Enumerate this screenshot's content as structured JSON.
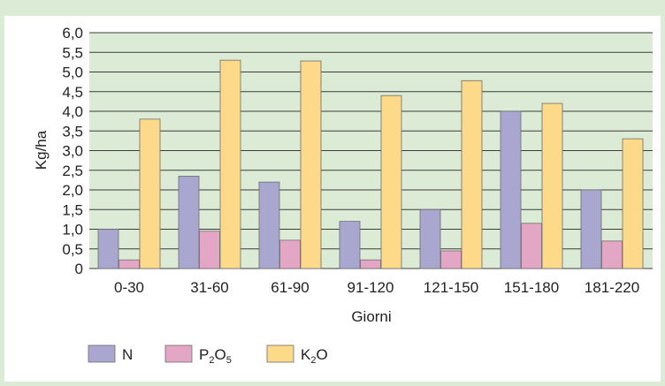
{
  "chart_data": {
    "type": "bar",
    "categories": [
      "0-30",
      "31-60",
      "61-90",
      "91-120",
      "121-150",
      "151-180",
      "181-220"
    ],
    "series": [
      {
        "name": "N",
        "color": "#a9a7cf",
        "values": [
          1.0,
          2.35,
          2.2,
          1.2,
          1.5,
          4.0,
          2.0
        ]
      },
      {
        "name": "P2O5",
        "color": "#e3a6c4",
        "values": [
          0.22,
          0.95,
          0.72,
          0.22,
          0.45,
          1.15,
          0.7
        ]
      },
      {
        "name": "K2O",
        "color": "#fdd98a",
        "values": [
          3.8,
          5.3,
          5.28,
          4.4,
          4.78,
          4.2,
          3.3
        ]
      }
    ],
    "xlabel": "Giorni",
    "ylabel": "Kg/ha",
    "ylim": [
      0,
      6
    ],
    "yticks": [
      "0",
      "0,5",
      "1,0",
      "1,5",
      "2,0",
      "2,5",
      "3,0",
      "3,5",
      "4,0",
      "4,5",
      "5,0",
      "5,5",
      "6,0"
    ],
    "grid": true,
    "legend_position": "bottom-left",
    "plot_background": "#dcebd6"
  }
}
